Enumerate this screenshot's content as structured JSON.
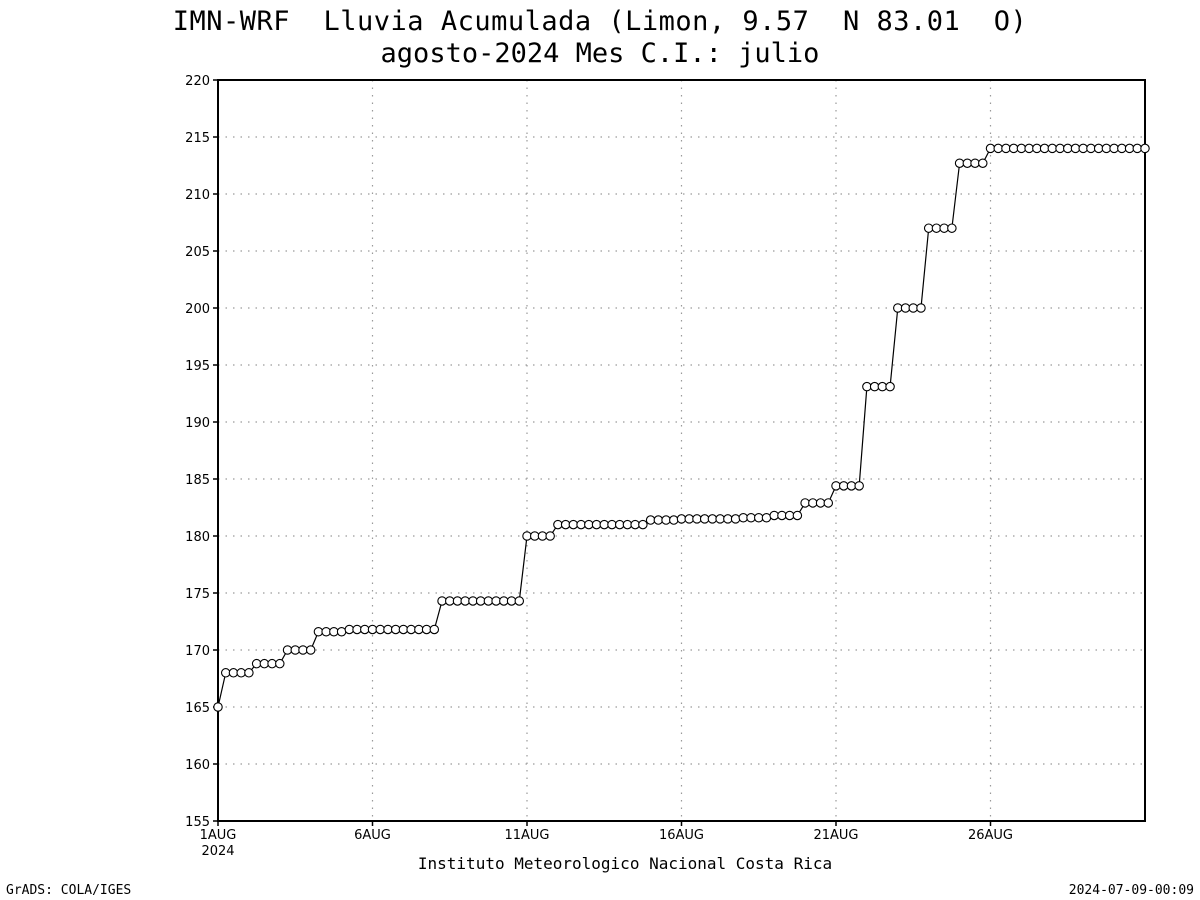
{
  "header": {
    "title_line1": "IMN-WRF  Lluvia Acumulada (Limon, 9.57  N 83.01  O)",
    "title_line2": "agosto-2024 Mes C.I.: julio"
  },
  "footer": {
    "credit": "GrADS: COLA/IGES",
    "timestamp": "2024-07-09-00:09",
    "institution": "Instituto Meteorologico Nacional Costa Rica"
  },
  "chart_data": {
    "type": "line",
    "title": "IMN-WRF  Lluvia Acumulada (Limon, 9.57  N 83.01  O)",
    "subtitle": "agosto-2024 Mes C.I.: julio",
    "xlabel": "Instituto Meteorologico Nacional Costa Rica",
    "ylabel": "",
    "ylim": [
      155,
      220
    ],
    "y_ticks": [
      155,
      160,
      165,
      170,
      175,
      180,
      185,
      190,
      195,
      200,
      205,
      210,
      215,
      220
    ],
    "xlim": [
      1,
      31
    ],
    "x_ticks": [
      {
        "day": 1,
        "label": "1AUG",
        "sublabel": "2024"
      },
      {
        "day": 6,
        "label": "6AUG"
      },
      {
        "day": 11,
        "label": "11AUG"
      },
      {
        "day": 16,
        "label": "16AUG"
      },
      {
        "day": 21,
        "label": "21AUG"
      },
      {
        "day": 26,
        "label": "26AUG"
      }
    ],
    "grid": true,
    "marker": "open-circle",
    "line_color": "#000000",
    "series": [
      {
        "x_start_day": 1,
        "steps_per_day": 4,
        "values": [
          165.0,
          168.0,
          168.0,
          168.0,
          168.0,
          168.8,
          168.8,
          168.8,
          168.8,
          170.0,
          170.0,
          170.0,
          170.0,
          171.6,
          171.6,
          171.6,
          171.6,
          171.8,
          171.8,
          171.8,
          171.8,
          171.8,
          171.8,
          171.8,
          171.8,
          171.8,
          171.8,
          171.8,
          171.8,
          174.3,
          174.3,
          174.3,
          174.3,
          174.3,
          174.3,
          174.3,
          174.3,
          174.3,
          174.3,
          174.3,
          180.0,
          180.0,
          180.0,
          180.0,
          181.0,
          181.0,
          181.0,
          181.0,
          181.0,
          181.0,
          181.0,
          181.0,
          181.0,
          181.0,
          181.0,
          181.0,
          181.4,
          181.4,
          181.4,
          181.4,
          181.5,
          181.5,
          181.5,
          181.5,
          181.5,
          181.5,
          181.5,
          181.5,
          181.6,
          181.6,
          181.6,
          181.6,
          181.8,
          181.8,
          181.8,
          181.8,
          182.9,
          182.9,
          182.9,
          182.9,
          184.4,
          184.4,
          184.4,
          184.4,
          193.1,
          193.1,
          193.1,
          193.1,
          200.0,
          200.0,
          200.0,
          200.0,
          207.0,
          207.0,
          207.0,
          207.0,
          212.7,
          212.7,
          212.7,
          212.7,
          214.0,
          214.0,
          214.0,
          214.0,
          214.0,
          214.0,
          214.0,
          214.0,
          214.0,
          214.0,
          214.0,
          214.0,
          214.0,
          214.0,
          214.0,
          214.0,
          214.0,
          214.0,
          214.0,
          214.0,
          214.0
        ]
      }
    ]
  }
}
